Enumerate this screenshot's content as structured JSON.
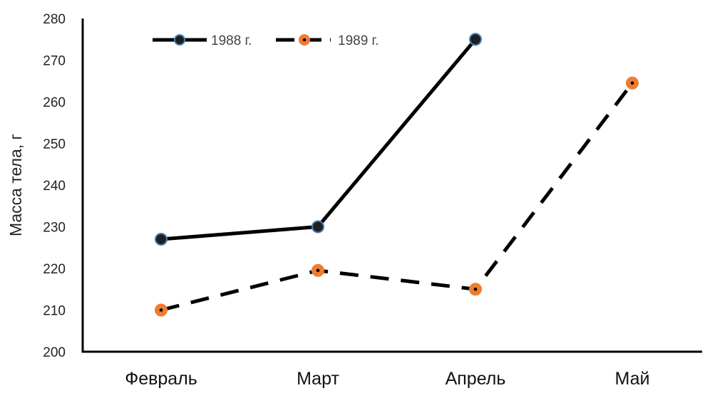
{
  "chart_data": {
    "type": "line",
    "title": "",
    "xlabel": "",
    "ylabel": "Масса тела, г",
    "categories": [
      "Февраль",
      "Март",
      "Апрель",
      "Май"
    ],
    "ylim": [
      200,
      280
    ],
    "yticks": [
      200,
      210,
      220,
      230,
      240,
      250,
      260,
      270,
      280
    ],
    "grid": false,
    "legend_position": "top-left",
    "series": [
      {
        "name": "1988 г.",
        "values": [
          227,
          230,
          275,
          null
        ],
        "line_color": "#000000",
        "line_style": "solid",
        "marker_color": "#1f1f1f",
        "marker_edge": "#4a7ebb"
      },
      {
        "name": "1989 г.",
        "values": [
          210,
          219.5,
          215,
          264.5
        ],
        "line_color": "#000000",
        "line_style": "dashed",
        "marker_color": "#ed7d31",
        "marker_edge": "#ed7d31"
      }
    ]
  }
}
